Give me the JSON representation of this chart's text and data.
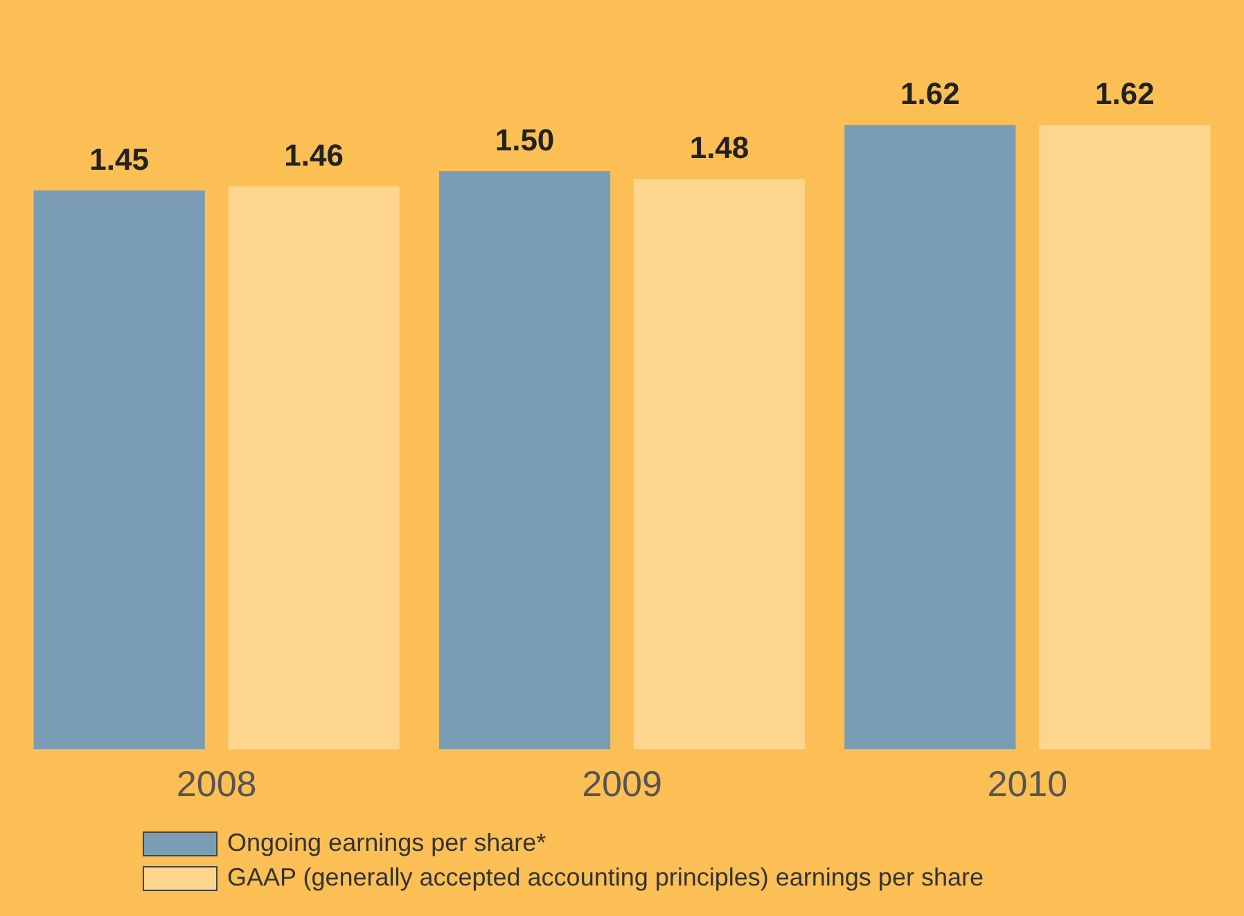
{
  "chart_data": {
    "type": "bar",
    "categories": [
      "2008",
      "2009",
      "2010"
    ],
    "series": [
      {
        "name": "Ongoing earnings per share*",
        "color": "#7a9db5",
        "values": [
          1.45,
          1.5,
          1.62
        ],
        "value_labels": [
          "1.45",
          "1.50",
          "1.62"
        ]
      },
      {
        "name": "GAAP (generally accepted accounting principles) earnings per share",
        "color": "#fed58f",
        "values": [
          1.46,
          1.48,
          1.62
        ],
        "value_labels": [
          "1.46",
          "1.48",
          "1.62"
        ]
      }
    ],
    "tick_labels": "x",
    "grid": false,
    "legend": "bottom"
  }
}
